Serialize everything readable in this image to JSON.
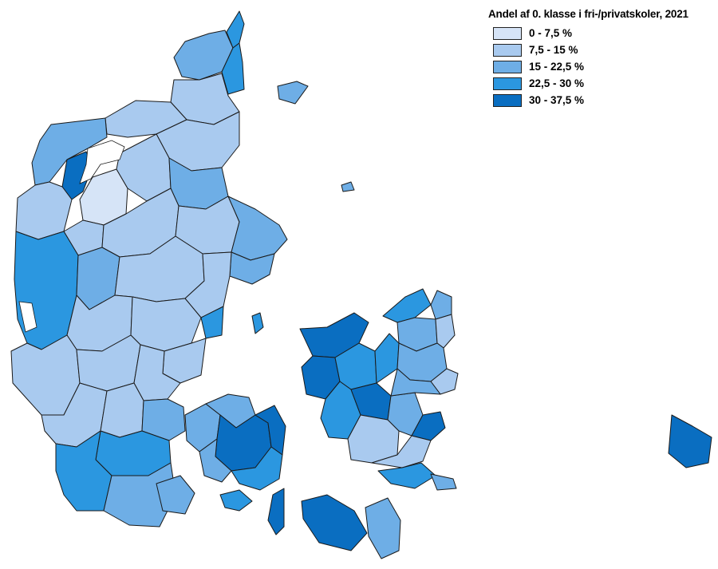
{
  "legend": {
    "title": "Andel af 0. klasse i fri-/privatskoler, 2021",
    "classes": [
      {
        "label": "0 - 7,5 %",
        "color": "#d6e4f7"
      },
      {
        "label": "7,5 - 15 %",
        "color": "#a9caef"
      },
      {
        "label": "15 - 22,5 %",
        "color": "#6eaee6"
      },
      {
        "label": "22,5 - 30 %",
        "color": "#2b97e0"
      },
      {
        "label": "30 - 37,5 %",
        "color": "#0a6ec1"
      }
    ]
  }
}
